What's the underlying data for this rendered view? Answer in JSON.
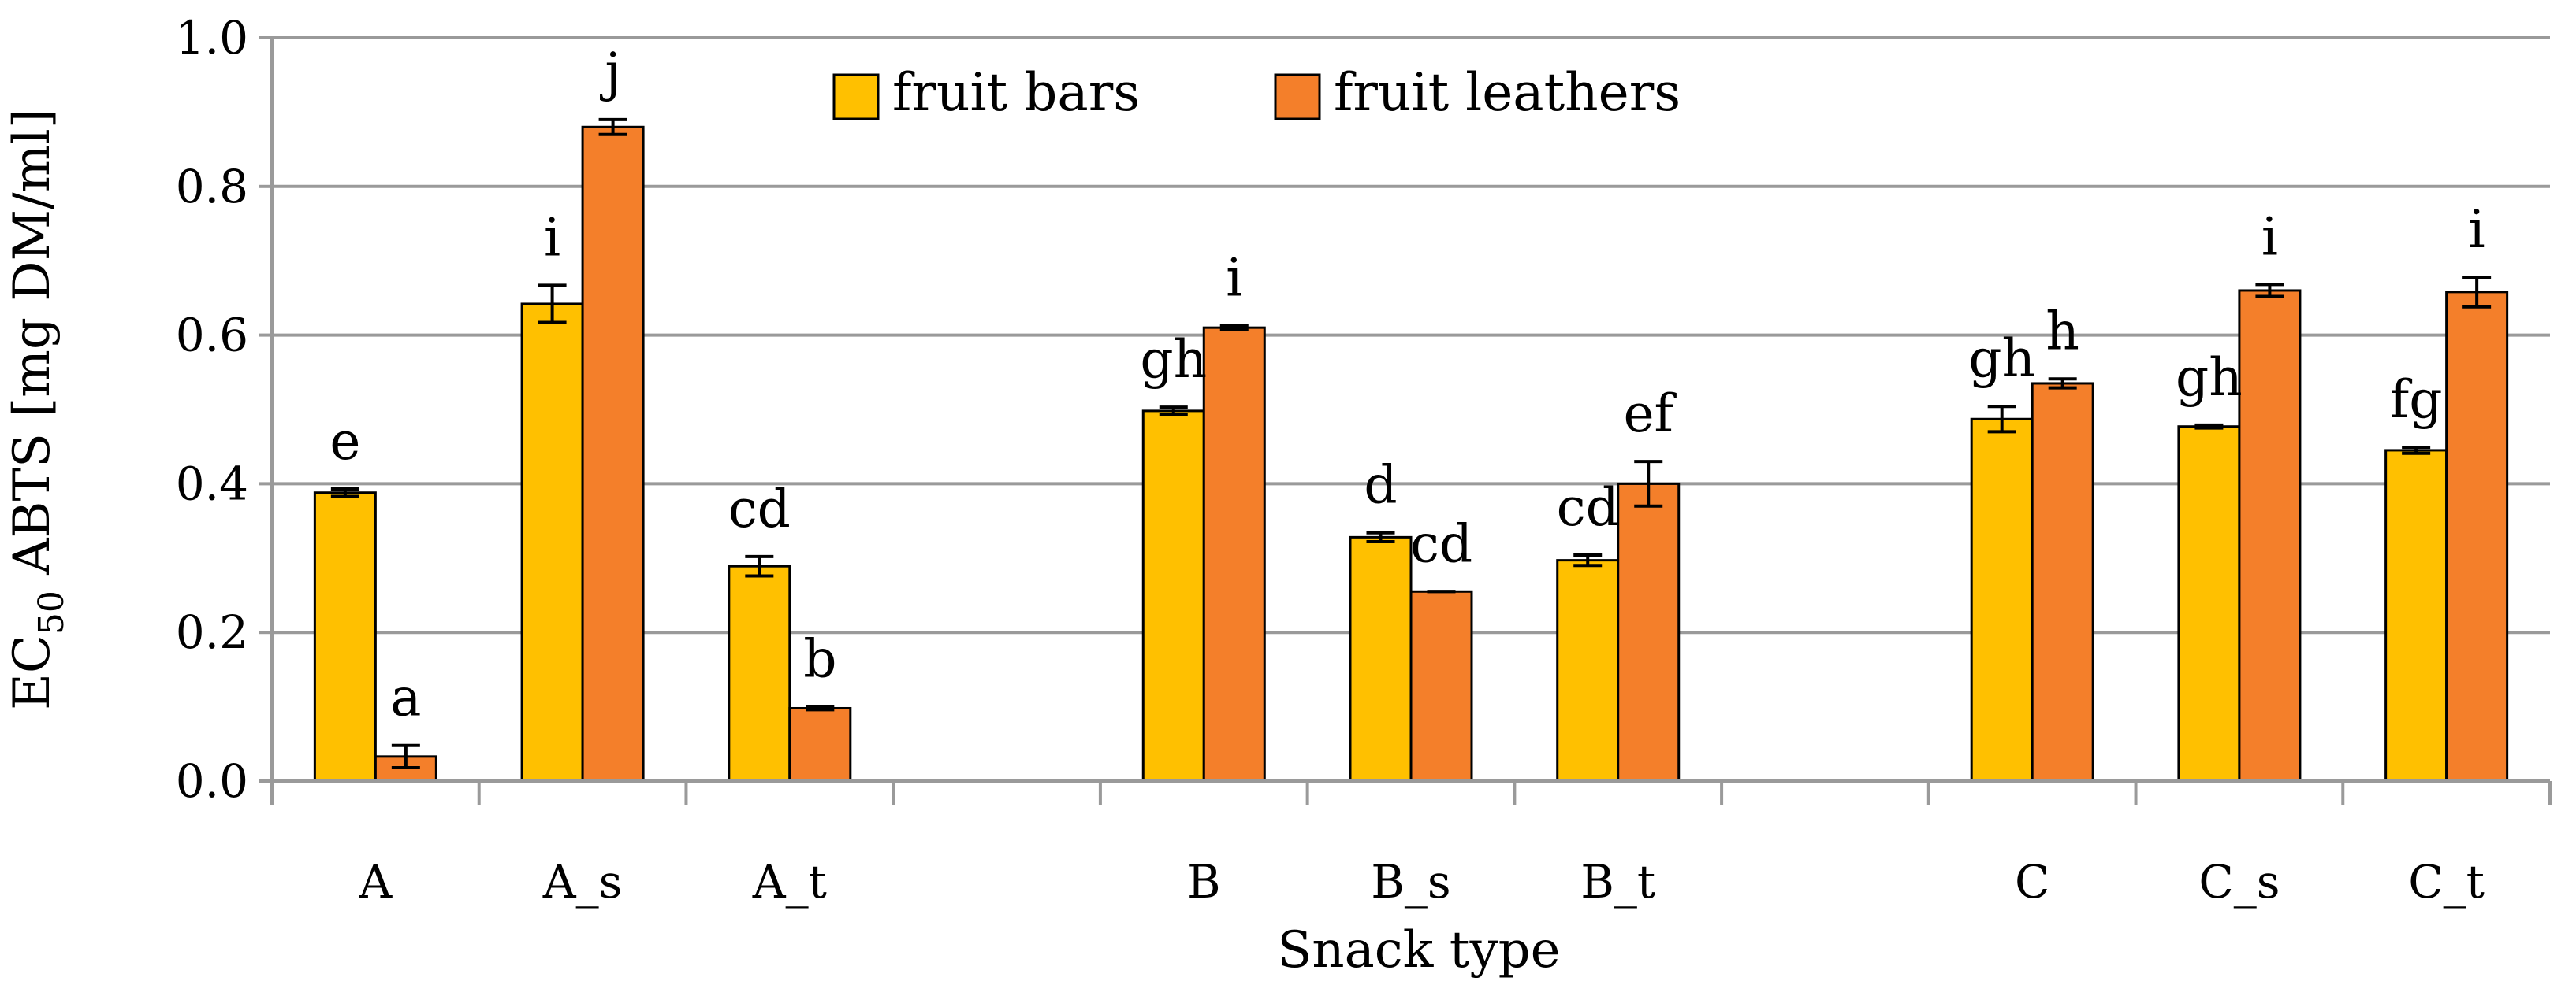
{
  "chart_data": {
    "type": "bar",
    "title": "",
    "xlabel": "Snack type",
    "ylabel": {
      "prefix": "EC",
      "subscript": "50",
      "suffix": " ABTS [mg DM/ml]"
    },
    "ylim": [
      0,
      1.0
    ],
    "yticks": [
      "0.0",
      "0.2",
      "0.4",
      "0.6",
      "0.8",
      "1.0"
    ],
    "grid": true,
    "legend_position": "top-center",
    "categories": [
      "A",
      "A_s",
      "A_t",
      "",
      "B",
      "B_s",
      "B_t",
      "",
      "C",
      "C_s",
      "C_t"
    ],
    "series": [
      {
        "name": "fruit bars",
        "color": "#FFC000",
        "values": [
          0.388,
          0.642,
          0.289,
          null,
          0.498,
          0.328,
          0.297,
          null,
          0.487,
          0.477,
          0.445
        ],
        "errors": [
          0.005,
          0.025,
          0.013,
          null,
          0.005,
          0.006,
          0.007,
          null,
          0.017,
          0.002,
          0.004
        ],
        "labels": [
          "e",
          "i",
          "cd",
          "",
          "gh",
          "d",
          "cd",
          "",
          "gh",
          "gh",
          "fg"
        ]
      },
      {
        "name": "fruit leathers",
        "color": "#F47F2A",
        "values": [
          0.033,
          0.88,
          0.098,
          null,
          0.61,
          0.255,
          0.4,
          null,
          0.535,
          0.66,
          0.658
        ],
        "errors": [
          0.015,
          0.01,
          0.002,
          null,
          0.003,
          0.0,
          0.03,
          null,
          0.006,
          0.008,
          0.02
        ],
        "labels": [
          "a",
          "j",
          "b",
          "",
          "i",
          "cd",
          "ef",
          "",
          "h",
          "i",
          "i"
        ]
      }
    ]
  }
}
